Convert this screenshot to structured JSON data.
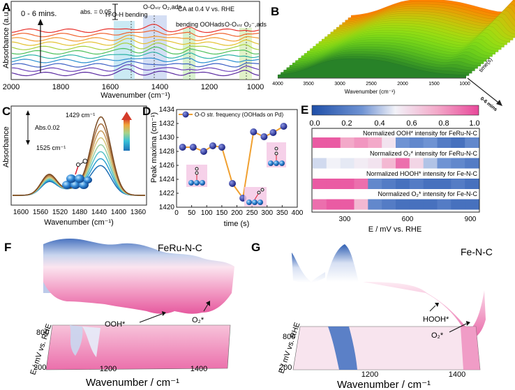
{
  "panels": {
    "A": {
      "label": "A",
      "time_label": "0 - 6 mins.",
      "scale_label": "abs. = 0.05",
      "condition": "CA at 0.4 V vs. RHE",
      "ylabel": "Absorbance (a.u.)",
      "xlabel": "Wavenumber (cm⁻¹)",
      "xticks": [
        "2000",
        "1800",
        "1600",
        "1400",
        "1200",
        "1000"
      ],
      "bands": [
        "H-O-H bending",
        "O-Oₛₜᵣ O₂,ads",
        "bending OOHads",
        "O-Oₛₜᵣ O₂⁻,ads"
      ]
    },
    "B": {
      "label": "B",
      "xlabel": "Wavenumber (cm⁻¹)",
      "xticks": [
        "4000",
        "3500",
        "3000",
        "2500",
        "2000",
        "1500",
        "1000"
      ],
      "time_axis": "time(s)",
      "time_range": "0-6 mins"
    },
    "C": {
      "label": "C",
      "ylabel": "Absorbance",
      "xlabel": "Wavenumber (cm⁻¹)",
      "scale_label": "Abs.0.02",
      "peak1": "1429 cm⁻¹",
      "peak2": "1525 cm⁻¹",
      "xticks": [
        "1600",
        "1560",
        "1520",
        "1480",
        "1440",
        "1400",
        "1360"
      ]
    },
    "D": {
      "label": "D",
      "legend": "O-O str. frequency (OOHads on Pd)",
      "ylabel": "Peak maxima (cm⁻¹)",
      "xlabel": "time (s)",
      "yticks": [
        "1420",
        "1422",
        "1424",
        "1426",
        "1428",
        "1430",
        "1432",
        "1434"
      ],
      "xticks": [
        "0",
        "50",
        "100",
        "150",
        "200",
        "250",
        "300",
        "350",
        "400"
      ]
    },
    "E": {
      "label": "E",
      "colorbar_ticks": [
        "0.0",
        "0.2",
        "0.4",
        "0.6",
        "0.8",
        "1.0"
      ],
      "rows": [
        "Normalized OOH* intensity for FeRu-N-C",
        "Normalized O₂* intensity for FeRu-N-C",
        "Normalized HOOH* intensity for Fe-N-C",
        "Normalized O₂* intensity for Fe-N-C"
      ],
      "xlabel": "E / mV vs. RHE",
      "xticks": [
        "300",
        "600",
        "900"
      ]
    },
    "F": {
      "label": "F",
      "title": "FeRu-N-C",
      "ann1": "OOH*",
      "ann2": "O₂*",
      "ylabel": "E / mV vs. RHE",
      "yticks": [
        "800",
        "200"
      ],
      "xlabel": "Wavenumber / cm⁻¹",
      "xticks": [
        "1200",
        "1400"
      ]
    },
    "G": {
      "label": "G",
      "title": "Fe-N-C",
      "ann1": "HOOH*",
      "ann2": "O₂*",
      "ylabel": "E / mV vs. RHE",
      "yticks": [
        "800",
        "200"
      ],
      "xlabel": "Wavenumber / cm⁻¹",
      "xticks": [
        "1200",
        "1400"
      ]
    }
  },
  "chart_data": [
    {
      "type": "line",
      "panel": "D",
      "title": "",
      "xlabel": "time (s)",
      "ylabel": "Peak maxima (cm⁻¹)",
      "xlim": [
        0,
        400
      ],
      "ylim": [
        1420,
        1434
      ],
      "series": [
        {
          "name": "O-O str. frequency (OOHads on Pd)",
          "x": [
            20,
            55,
            90,
            120,
            150,
            185,
            220,
            255,
            290,
            320,
            355
          ],
          "y": [
            1428.6,
            1428.6,
            1428.0,
            1428.8,
            1428.6,
            1423.4,
            1421.3,
            1430.8,
            1430.1,
            1430.7,
            1431.6
          ]
        }
      ]
    },
    {
      "type": "heatmap",
      "panel": "E",
      "xlabel": "E / mV vs. RHE",
      "xlim": [
        150,
        950
      ],
      "colormap_range": [
        0.0,
        1.0
      ],
      "columns": 12,
      "rows": [
        {
          "name": "Normalized OOH* intensity for FeRu-N-C",
          "values": [
            0.95,
            0.95,
            0.75,
            0.8,
            0.75,
            0.55,
            0.3,
            0.25,
            0.3,
            0.2,
            0.15,
            0.25
          ]
        },
        {
          "name": "Normalized O₂* intensity for FeRu-N-C",
          "values": [
            0.45,
            0.5,
            0.48,
            0.52,
            0.55,
            0.7,
            0.9,
            0.6,
            0.4,
            0.3,
            0.25,
            0.2
          ]
        },
        {
          "name": "Normalized HOOH* intensity for Fe-N-C",
          "values": [
            0.95,
            0.95,
            0.95,
            0.9,
            0.25,
            0.2,
            0.15,
            0.2,
            0.15,
            0.15,
            0.2,
            0.15
          ]
        },
        {
          "name": "Normalized O₂* intensity for Fe-N-C",
          "values": [
            0.9,
            0.95,
            0.95,
            0.7,
            0.25,
            0.2,
            0.15,
            0.15,
            0.15,
            0.2,
            0.15,
            0.15
          ]
        }
      ]
    }
  ]
}
